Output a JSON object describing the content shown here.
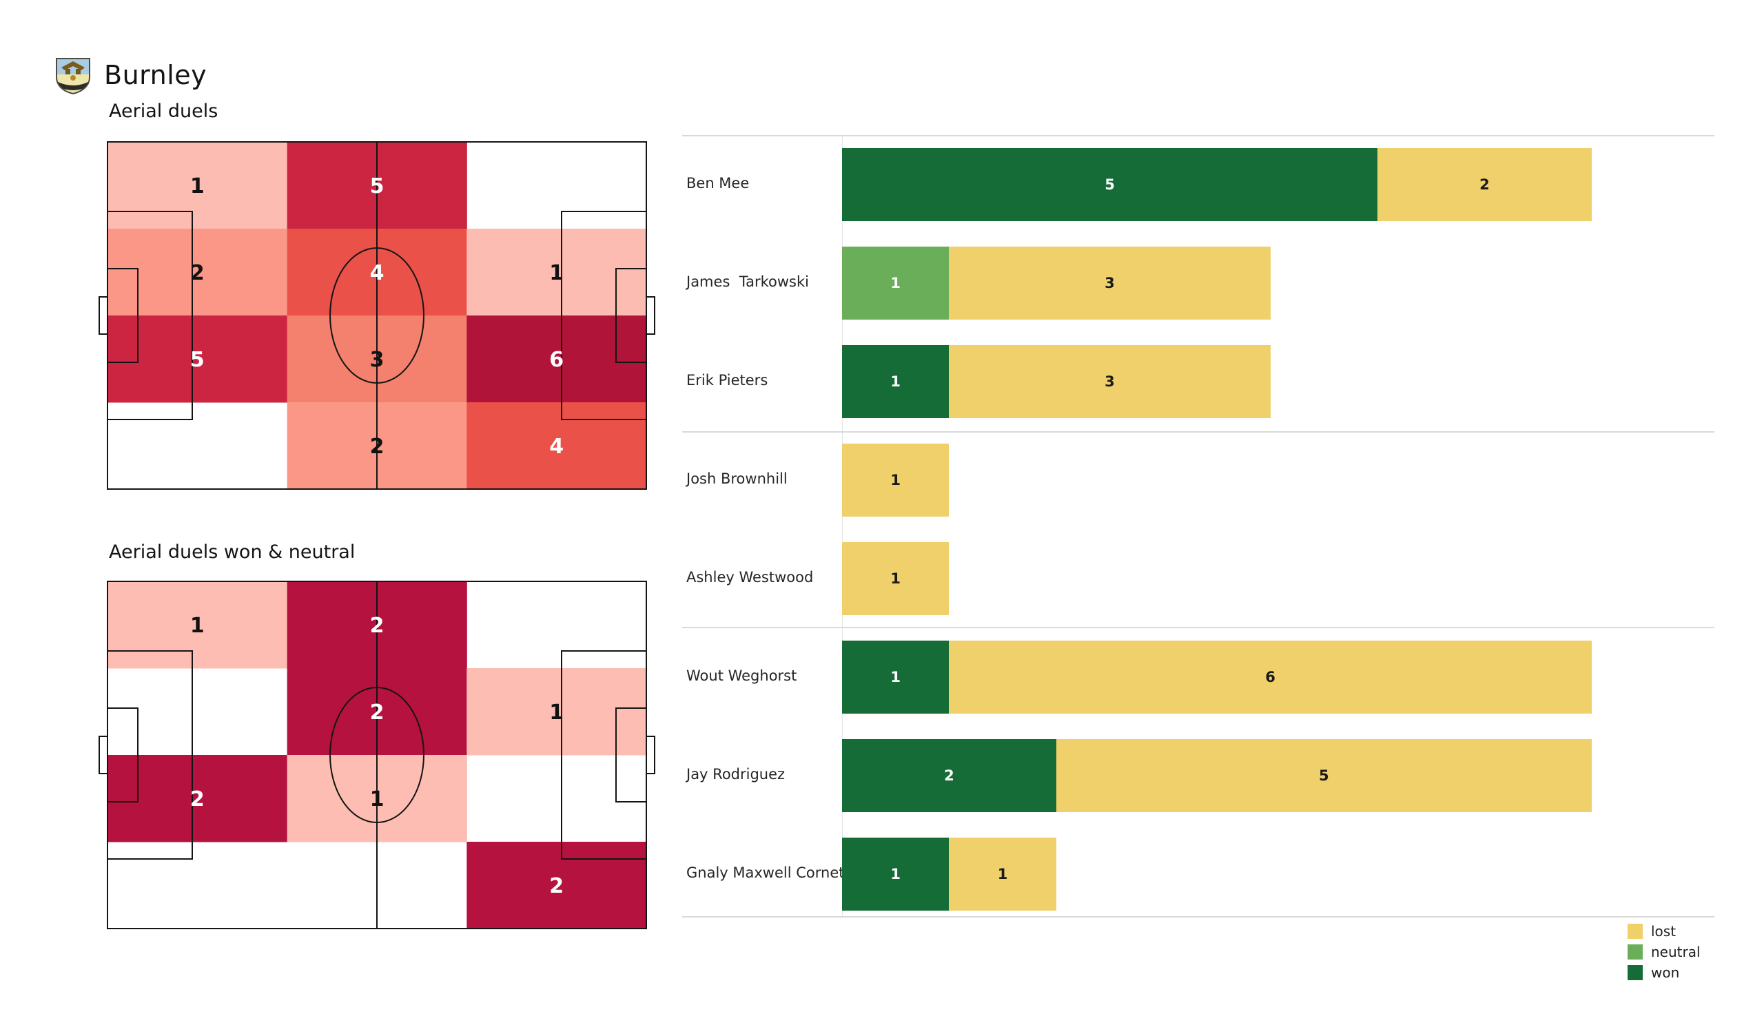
{
  "page": {
    "team": "Burnley"
  },
  "chart_data": [
    {
      "type": "heatmap",
      "title": "Aerial duels",
      "rows": 4,
      "cols": 3,
      "cells": [
        {
          "row": 0,
          "col": 0,
          "value": 1,
          "fill": "#fdbcb1",
          "value_color": "#111111"
        },
        {
          "row": 0,
          "col": 1,
          "value": 5,
          "fill": "#cb2541",
          "value_color": "#ffffff"
        },
        {
          "row": 1,
          "col": 0,
          "value": 2,
          "fill": "#fa9787",
          "value_color": "#111111"
        },
        {
          "row": 1,
          "col": 1,
          "value": 4,
          "fill": "#e95149",
          "value_color": "#ffffff"
        },
        {
          "row": 1,
          "col": 2,
          "value": 1,
          "fill": "#fdbcb1",
          "value_color": "#111111"
        },
        {
          "row": 2,
          "col": 0,
          "value": 5,
          "fill": "#cb2541",
          "value_color": "#ffffff"
        },
        {
          "row": 2,
          "col": 1,
          "value": 3,
          "fill": "#f3816d",
          "value_color": "#111111"
        },
        {
          "row": 2,
          "col": 2,
          "value": 6,
          "fill": "#b11439",
          "value_color": "#ffffff"
        },
        {
          "row": 3,
          "col": 1,
          "value": 2,
          "fill": "#fa9787",
          "value_color": "#111111"
        },
        {
          "row": 3,
          "col": 2,
          "value": 4,
          "fill": "#e95149",
          "value_color": "#ffffff"
        }
      ]
    },
    {
      "type": "heatmap",
      "title": "Aerial duels won & neutral",
      "rows": 4,
      "cols": 3,
      "cells": [
        {
          "row": 0,
          "col": 0,
          "value": 1,
          "fill": "#fdbdb2",
          "value_color": "#111111"
        },
        {
          "row": 0,
          "col": 1,
          "value": 2,
          "fill": "#b5123f",
          "value_color": "#ffffff"
        },
        {
          "row": 1,
          "col": 1,
          "value": 2,
          "fill": "#b5123f",
          "value_color": "#ffffff"
        },
        {
          "row": 1,
          "col": 2,
          "value": 1,
          "fill": "#fdbdb2",
          "value_color": "#111111"
        },
        {
          "row": 2,
          "col": 0,
          "value": 2,
          "fill": "#b5123f",
          "value_color": "#ffffff"
        },
        {
          "row": 2,
          "col": 1,
          "value": 1,
          "fill": "#fdbdb2",
          "value_color": "#111111"
        },
        {
          "row": 3,
          "col": 2,
          "value": 2,
          "fill": "#b5123f",
          "value_color": "#ffffff"
        }
      ]
    },
    {
      "type": "bar",
      "orientation": "horizontal",
      "stacked": true,
      "xlim": [
        0,
        7
      ],
      "categories": [
        "Ben Mee",
        "James  Tarkowski",
        "Erik Pieters",
        "Josh Brownhill",
        "Ashley Westwood",
        "Wout Weghorst",
        "Jay Rodriguez",
        "Gnaly Maxwell Cornet"
      ],
      "series": [
        {
          "name": "won",
          "color": "#156c37",
          "value_color": "#ffffff",
          "values": [
            5,
            0,
            1,
            0,
            0,
            1,
            2,
            1
          ]
        },
        {
          "name": "neutral",
          "color": "#6bae5a",
          "value_color": "#ffffff",
          "values": [
            0,
            1,
            0,
            0,
            0,
            0,
            0,
            0
          ]
        },
        {
          "name": "lost",
          "color": "#f0d06a",
          "value_color": "#1a1a1a",
          "values": [
            2,
            3,
            3,
            1,
            1,
            6,
            5,
            1
          ]
        }
      ],
      "group_separators_after": [
        "Erik Pieters",
        "Ashley Westwood",
        "Gnaly Maxwell Cornet"
      ],
      "legend": [
        {
          "label": "lost",
          "color": "#f0d06a"
        },
        {
          "label": "neutral",
          "color": "#6bae5a"
        },
        {
          "label": "won",
          "color": "#156c37"
        }
      ]
    }
  ]
}
